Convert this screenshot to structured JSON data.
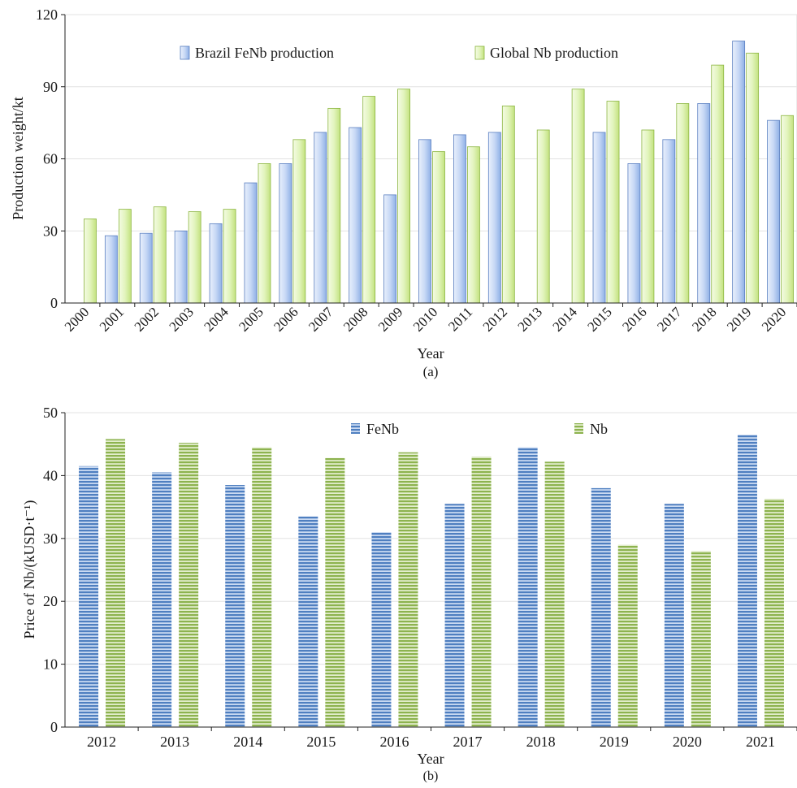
{
  "chart_data": [
    {
      "type": "bar",
      "panel_label": "(a)",
      "xlabel": "Year",
      "ylabel": "Production weight/kt",
      "ylim": [
        0,
        120
      ],
      "yticks": [
        0,
        30,
        60,
        90,
        120
      ],
      "grid": true,
      "legend_position": "top",
      "categories": [
        "2000",
        "2001",
        "2002",
        "2003",
        "2004",
        "2005",
        "2006",
        "2007",
        "2008",
        "2009",
        "2010",
        "2011",
        "2012",
        "2013",
        "2014",
        "2015",
        "2016",
        "2017",
        "2018",
        "2019",
        "2020"
      ],
      "series": [
        {
          "name": "Brazil FeNb production",
          "color": "#a9c4ef",
          "values": [
            null,
            28,
            29,
            30,
            33,
            50,
            58,
            71,
            73,
            45,
            68,
            70,
            71,
            null,
            null,
            71,
            58,
            68,
            83,
            109,
            76
          ]
        },
        {
          "name": "Global Nb production",
          "color": "#d3ed9b",
          "values": [
            35,
            39,
            40,
            38,
            39,
            58,
            68,
            81,
            86,
            89,
            63,
            65,
            82,
            72,
            89,
            84,
            72,
            83,
            99,
            104,
            78
          ]
        }
      ]
    },
    {
      "type": "bar",
      "panel_label": "(b)",
      "xlabel": "Year",
      "ylabel": "Price of  Nb/(kUSD·t⁻¹)",
      "ylim": [
        0,
        50
      ],
      "yticks": [
        0,
        10,
        20,
        30,
        40,
        50
      ],
      "grid": true,
      "legend_position": "top",
      "categories": [
        "2012",
        "2013",
        "2014",
        "2015",
        "2016",
        "2017",
        "2018",
        "2019",
        "2020",
        "2021"
      ],
      "series": [
        {
          "name": "FeNb",
          "color": "#4f7fc0",
          "values": [
            41.5,
            40.5,
            38.5,
            33.5,
            31,
            35.5,
            44.5,
            38,
            35.5,
            46.5
          ]
        },
        {
          "name": "Nb",
          "color": "#8db34f",
          "values": [
            45.8,
            45.2,
            44.5,
            42.8,
            43.7,
            43,
            42.2,
            29,
            28,
            36.3
          ]
        }
      ]
    }
  ]
}
